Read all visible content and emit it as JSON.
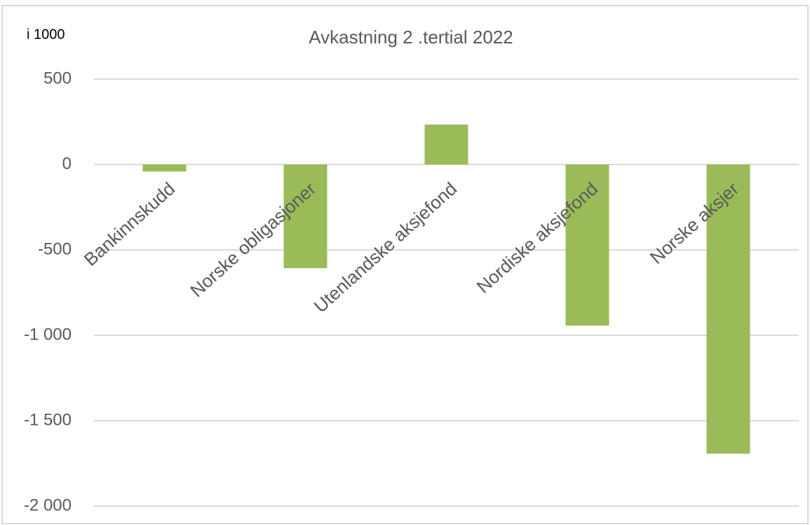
{
  "chart_data": {
    "type": "bar",
    "title": "Avkastning 2 .tertial 2022",
    "unit_label": "i 1000",
    "categories": [
      "Bankinnskudd",
      "Norske obligasjoner",
      "Utenlandske aksjefond",
      "Nordiske aksjefond",
      "Norske aksjer"
    ],
    "values": [
      -41,
      -607,
      234,
      -943,
      -1693
    ],
    "color": "#9bbb59",
    "ylim": [
      -2000,
      500
    ],
    "yticks": [
      500,
      0,
      -500,
      {
        "value": -1000,
        "label": "-1 000"
      },
      {
        "value": -1500,
        "label": "-1 500"
      },
      {
        "value": -2000,
        "label": "-2 000"
      }
    ],
    "grid": true
  }
}
